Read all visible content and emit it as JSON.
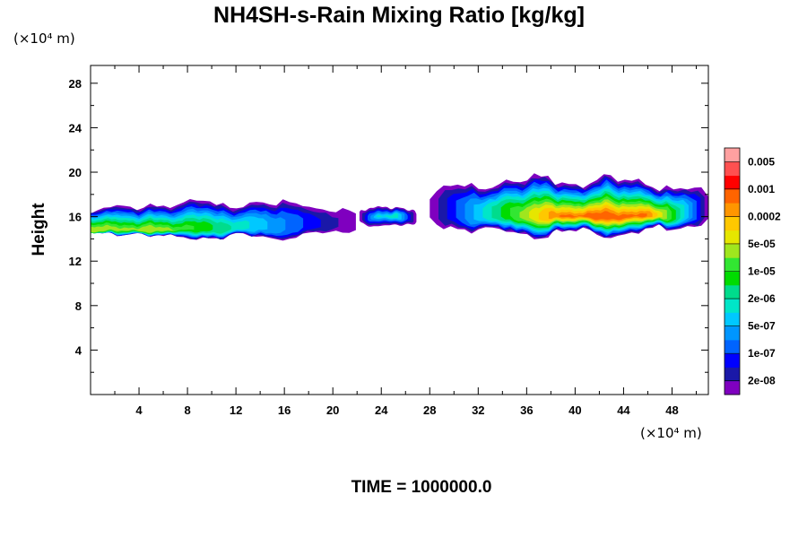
{
  "chart_data": {
    "type": "heatmap",
    "title": "NH4SH-s-Rain Mixing Ratio [kg/kg]",
    "xlabel": "",
    "ylabel": "Height",
    "x_unit_label": "(×10⁴ m)",
    "y_unit_label": "(×10⁴ m)",
    "xlim": [
      0,
      51
    ],
    "ylim": [
      0,
      29.6
    ],
    "x_ticks": [
      4,
      8,
      12,
      16,
      20,
      24,
      28,
      32,
      36,
      40,
      44,
      48
    ],
    "y_ticks": [
      4,
      8,
      12,
      16,
      20,
      24,
      28
    ],
    "x_tick_labels": [
      "4",
      "8",
      "12",
      "16",
      "20",
      "24",
      "28",
      "32",
      "36",
      "40",
      "44",
      "48"
    ],
    "y_tick_labels": [
      "4",
      "8",
      "12",
      "16",
      "20",
      "24",
      "28"
    ],
    "grid": false,
    "footer": "TIME = 1000000.0",
    "colorbar": {
      "levels": [
        "2e-08",
        "1e-07",
        "5e-07",
        "2e-06",
        "1e-05",
        "5e-05",
        "0.0002",
        "0.001",
        "0.005"
      ],
      "colors": [
        "#7f00bf",
        "#1a18a8",
        "#0000ff",
        "#0064ff",
        "#0096ff",
        "#00c8ff",
        "#00e6c8",
        "#00dc8c",
        "#00dc00",
        "#32e632",
        "#a0e61e",
        "#e6e600",
        "#ffc800",
        "#ff9600",
        "#ff6400",
        "#ff0000",
        "#ff5050",
        "#ffa0a0"
      ]
    },
    "cloud_bands": [
      {
        "x_start": 0.0,
        "x_end": 21.9,
        "y_bottom": 13.4,
        "y_top": 17.6,
        "peak_level": "5e-05",
        "peak_x": 2.5,
        "peak_y": 14.8
      },
      {
        "x_start": 22.2,
        "x_end": 26.9,
        "y_bottom": 14.7,
        "y_top": 17.1,
        "peak_level": "2e-06",
        "peak_x": 24.5,
        "peak_y": 16.0
      },
      {
        "x_start": 28.0,
        "x_end": 51.0,
        "y_bottom": 13.3,
        "y_top": 19.9,
        "peak_level": "0.001",
        "peak_x": 42.5,
        "peak_y": 16.0
      }
    ]
  }
}
